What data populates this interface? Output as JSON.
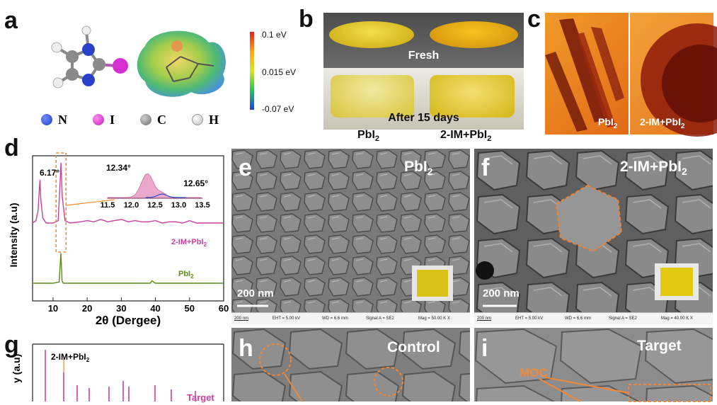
{
  "panels": [
    "a",
    "b",
    "c",
    "d",
    "e",
    "f",
    "g",
    "h",
    "i"
  ],
  "panel_a": {
    "legend": [
      {
        "label": "N",
        "color": "#1f3fbf"
      },
      {
        "label": "I",
        "color": "#d62fcf"
      },
      {
        "label": "C",
        "color": "#8a8a8a"
      },
      {
        "label": "H",
        "color": "#f2f2f2"
      }
    ],
    "colorbar": {
      "max": "0.1 eV",
      "mid": "0.015 eV",
      "min": "-0.07 eV"
    }
  },
  "panel_b": {
    "top_label": "Fresh",
    "bottom_label": "After 15 days",
    "left_caption": "PbI",
    "right_caption": "2-IM+PbI",
    "subscript": "2"
  },
  "panel_c": {
    "left_label": "PbI",
    "right_label": "2-IM+PbI",
    "subscript": "2"
  },
  "panel_e": {
    "label": "PbI",
    "subscript": "2",
    "scale": "200 nm",
    "info": {
      "scale": "200 nm",
      "eht": "EHT = 5.00 kV",
      "wd": "WD = 6.6 mm",
      "signal": "Signal A = SE2",
      "mag": "Mag = 50.00 K X"
    }
  },
  "panel_f": {
    "label": "2-IM+PbI",
    "subscript": "2",
    "scale": "200 nm",
    "info": {
      "scale": "200 nm",
      "eht": "EHT = 5.00 kV",
      "wd": "WD = 6.6 mm",
      "signal": "Signal A = SE2",
      "mag": "Mag = 40.00 K X"
    }
  },
  "panel_g": {
    "series_label": "2-IM+PbI",
    "subscript": "2",
    "right_label": "Target",
    "ylabel_partial": "y (a.u)"
  },
  "panel_h": {
    "label": "Control"
  },
  "panel_i": {
    "label": "Target",
    "annotation": "MOC"
  },
  "chart_data": {
    "type": "line",
    "xlabel": "2θ (Dergee)",
    "ylabel": "Intensity (a.u)",
    "xlim": [
      4,
      60
    ],
    "xticks": [
      10,
      20,
      30,
      40,
      50,
      60
    ],
    "series": [
      {
        "name": "2-IM+PbI2",
        "color": "#cc3f9e",
        "x": [
          4,
          5,
          5.6,
          6.0,
          6.17,
          6.4,
          7,
          8,
          10,
          11.5,
          12.0,
          12.34,
          12.7,
          13.5,
          15,
          18,
          20,
          22,
          24,
          26,
          28,
          30,
          32,
          34,
          36,
          38,
          40,
          42,
          44,
          46,
          48,
          50,
          52,
          54,
          56,
          58,
          60
        ],
        "y": [
          0.5,
          0.52,
          0.6,
          0.78,
          0.86,
          0.7,
          0.54,
          0.5,
          0.5,
          0.52,
          0.8,
          1.0,
          0.72,
          0.52,
          0.5,
          0.51,
          0.52,
          0.51,
          0.53,
          0.51,
          0.52,
          0.53,
          0.51,
          0.52,
          0.51,
          0.51,
          0.52,
          0.5,
          0.51,
          0.51,
          0.5,
          0.52,
          0.5,
          0.5,
          0.5,
          0.5,
          0.5
        ]
      },
      {
        "name": "PbI2",
        "color": "#5e8a1a",
        "x": [
          4,
          10,
          11.8,
          12.3,
          12.65,
          13.0,
          13.5,
          20,
          30,
          38.5,
          39,
          40,
          50,
          60
        ],
        "y": [
          0.0,
          0.0,
          0.01,
          0.25,
          0.02,
          0.0,
          0.0,
          0.0,
          0.0,
          0.0,
          0.02,
          0.0,
          0.0,
          0.0
        ]
      }
    ],
    "annotations": [
      "6.17°",
      "12.34°",
      "12.65°"
    ],
    "inset": {
      "xticks": [
        "11.5",
        "12.0",
        "12.5",
        "13.0",
        "13.5"
      ],
      "peak_labels": [
        "12.34°",
        "12.65°"
      ]
    },
    "series_labels": {
      "top": "2-IM+PbI",
      "bottom": "PbI",
      "subscript": "2"
    }
  }
}
